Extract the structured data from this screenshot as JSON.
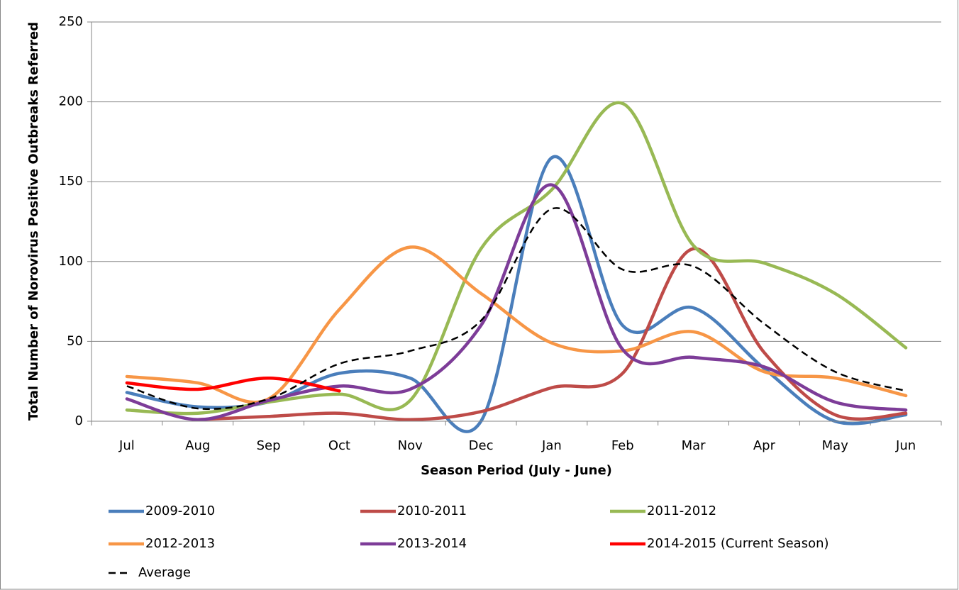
{
  "chart_data": {
    "type": "line",
    "smooth": true,
    "x_label": "Season Period (July - June)",
    "y_label": "Total Number of Norovirus Positive Outbreaks Referred",
    "categories": [
      "Jul",
      "Aug",
      "Sep",
      "Oct",
      "Nov",
      "Dec",
      "Jan",
      "Feb",
      "Mar",
      "Apr",
      "May",
      "Jun"
    ],
    "ylim": [
      0,
      250
    ],
    "yticks": [
      0,
      50,
      100,
      150,
      200,
      250
    ],
    "grid": true,
    "legend": "bottom",
    "series": [
      {
        "name": "2009-2010",
        "color": "#4a7ebb",
        "values": [
          18,
          9,
          12,
          30,
          27,
          0,
          165,
          60,
          71,
          33,
          0,
          4
        ]
      },
      {
        "name": "2010-2011",
        "color": "#be4b48",
        "values": [
          null,
          1,
          3,
          5,
          1,
          6,
          21,
          30,
          108,
          43,
          4,
          5
        ]
      },
      {
        "name": "2011-2012",
        "color": "#98b954",
        "values": [
          7,
          5,
          12,
          17,
          13,
          108,
          145,
          199,
          110,
          99,
          80,
          46
        ]
      },
      {
        "name": "2012-2013",
        "color": "#f79646",
        "values": [
          28,
          24,
          14,
          70,
          109,
          80,
          49,
          44,
          56,
          31,
          27,
          16
        ]
      },
      {
        "name": "2013-2014",
        "color": "#7d3c98",
        "values": [
          14,
          1,
          13,
          22,
          20,
          60,
          148,
          45,
          40,
          34,
          12,
          7
        ]
      },
      {
        "name": "2014-2015 (Current Season)",
        "color": "#ff0000",
        "values": [
          24,
          20,
          27,
          19,
          null,
          null,
          null,
          null,
          null,
          null,
          null,
          null
        ]
      },
      {
        "name": "Average",
        "color": "#000000",
        "dashed": true,
        "values": [
          22,
          8,
          14,
          36,
          44,
          63,
          133,
          95,
          97,
          61,
          31,
          19
        ]
      }
    ]
  }
}
